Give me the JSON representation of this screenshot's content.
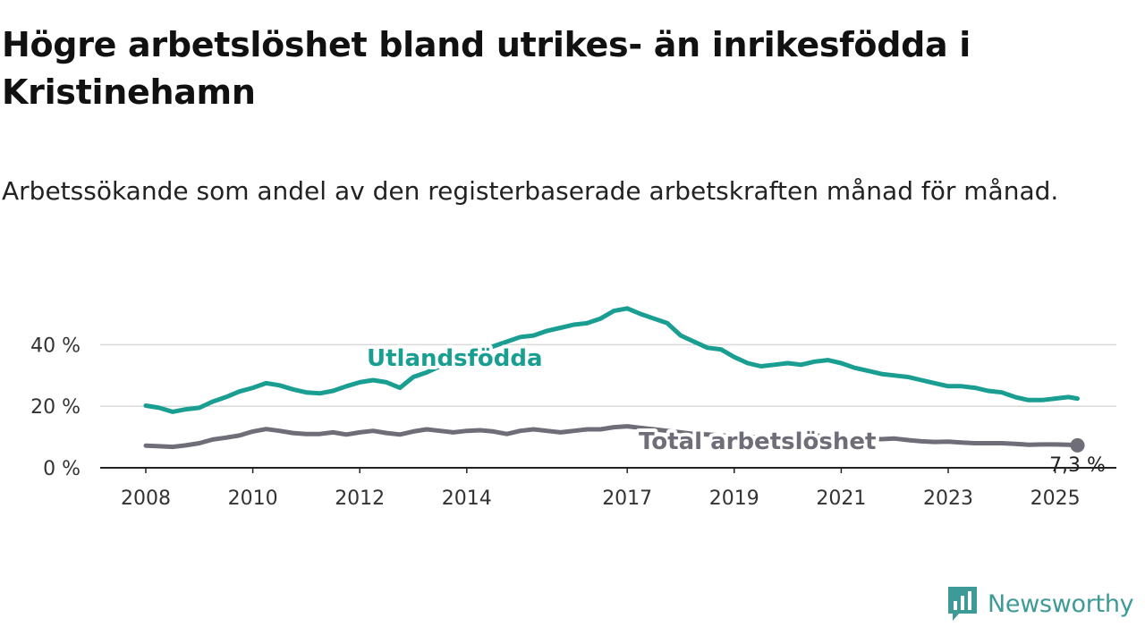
{
  "title": "Högre arbetslöshet bland utrikes- än inrikesfödda i Kristinehamn",
  "subtitle": "Arbetssökande som andel av den registerbaserade arbetskraften månad för månad.",
  "brand": {
    "name": "Newsworthy",
    "color": "#3d9a97",
    "icon": "bar-chart-badge-icon"
  },
  "chart_data": {
    "type": "line",
    "title": "Högre arbetslöshet bland utrikes- än inrikesfödda i Kristinehamn",
    "subtitle": "Arbetssökande som andel av den registerbaserade arbetskraften månad för månad.",
    "xlabel": "",
    "ylabel": "",
    "x_ticks": [
      "2008",
      "2010",
      "2012",
      "2014",
      "2017",
      "2019",
      "2021",
      "2023",
      "2025"
    ],
    "y_ticks": [
      {
        "value": 0,
        "label": "0 %"
      },
      {
        "value": 20,
        "label": "20 %"
      },
      {
        "value": 40,
        "label": "40 %"
      }
    ],
    "xlim": [
      "2008-01",
      "2025-06"
    ],
    "ylim": [
      0,
      55
    ],
    "grid": "horizontal",
    "legend": "inline labels",
    "series": [
      {
        "name": "Utlandsfödda",
        "color": "#1a9e92",
        "points": [
          [
            "2008-01",
            20.2
          ],
          [
            "2008-04",
            19.5
          ],
          [
            "2008-07",
            18.2
          ],
          [
            "2008-10",
            19.0
          ],
          [
            "2009-01",
            19.5
          ],
          [
            "2009-04",
            21.5
          ],
          [
            "2009-07",
            23.0
          ],
          [
            "2009-10",
            24.8
          ],
          [
            "2010-01",
            26.0
          ],
          [
            "2010-04",
            27.5
          ],
          [
            "2010-07",
            26.8
          ],
          [
            "2010-10",
            25.5
          ],
          [
            "2011-01",
            24.5
          ],
          [
            "2011-04",
            24.2
          ],
          [
            "2011-07",
            25.0
          ],
          [
            "2011-10",
            26.5
          ],
          [
            "2012-01",
            27.8
          ],
          [
            "2012-04",
            28.5
          ],
          [
            "2012-07",
            27.8
          ],
          [
            "2012-10",
            26.0
          ],
          [
            "2013-01",
            29.5
          ],
          [
            "2013-04",
            31.0
          ],
          [
            "2013-07",
            33.0
          ],
          [
            "2013-10",
            34.5
          ],
          [
            "2014-01",
            36.5
          ],
          [
            "2014-04",
            38.0
          ],
          [
            "2014-07",
            39.5
          ],
          [
            "2014-10",
            41.0
          ],
          [
            "2015-01",
            42.5
          ],
          [
            "2015-04",
            43.0
          ],
          [
            "2015-07",
            44.5
          ],
          [
            "2015-10",
            45.5
          ],
          [
            "2016-01",
            46.5
          ],
          [
            "2016-04",
            47.0
          ],
          [
            "2016-07",
            48.5
          ],
          [
            "2016-10",
            51.0
          ],
          [
            "2017-01",
            51.8
          ],
          [
            "2017-04",
            50.0
          ],
          [
            "2017-07",
            48.5
          ],
          [
            "2017-10",
            47.0
          ],
          [
            "2018-01",
            43.0
          ],
          [
            "2018-04",
            41.0
          ],
          [
            "2018-07",
            39.0
          ],
          [
            "2018-10",
            38.5
          ],
          [
            "2019-01",
            36.0
          ],
          [
            "2019-04",
            34.0
          ],
          [
            "2019-07",
            33.0
          ],
          [
            "2019-10",
            33.5
          ],
          [
            "2020-01",
            34.0
          ],
          [
            "2020-04",
            33.5
          ],
          [
            "2020-07",
            34.5
          ],
          [
            "2020-10",
            35.0
          ],
          [
            "2021-01",
            34.0
          ],
          [
            "2021-04",
            32.5
          ],
          [
            "2021-07",
            31.5
          ],
          [
            "2021-10",
            30.5
          ],
          [
            "2022-01",
            30.0
          ],
          [
            "2022-04",
            29.5
          ],
          [
            "2022-07",
            28.5
          ],
          [
            "2022-10",
            27.5
          ],
          [
            "2023-01",
            26.5
          ],
          [
            "2023-04",
            26.5
          ],
          [
            "2023-07",
            26.0
          ],
          [
            "2023-10",
            25.0
          ],
          [
            "2024-01",
            24.5
          ],
          [
            "2024-04",
            23.0
          ],
          [
            "2024-07",
            22.0
          ],
          [
            "2024-10",
            22.0
          ],
          [
            "2025-01",
            22.5
          ],
          [
            "2025-04",
            23.0
          ],
          [
            "2025-06",
            22.5
          ]
        ]
      },
      {
        "name": "Total arbetslöshet",
        "color": "#6e6d78",
        "end_label": "7,3 %",
        "points": [
          [
            "2008-01",
            7.2
          ],
          [
            "2008-04",
            7.0
          ],
          [
            "2008-07",
            6.8
          ],
          [
            "2008-10",
            7.3
          ],
          [
            "2009-01",
            8.0
          ],
          [
            "2009-04",
            9.2
          ],
          [
            "2009-07",
            9.8
          ],
          [
            "2009-10",
            10.5
          ],
          [
            "2010-01",
            11.8
          ],
          [
            "2010-04",
            12.6
          ],
          [
            "2010-07",
            12.0
          ],
          [
            "2010-10",
            11.3
          ],
          [
            "2011-01",
            11.0
          ],
          [
            "2011-04",
            11.0
          ],
          [
            "2011-07",
            11.5
          ],
          [
            "2011-10",
            10.8
          ],
          [
            "2012-01",
            11.5
          ],
          [
            "2012-04",
            12.0
          ],
          [
            "2012-07",
            11.3
          ],
          [
            "2012-10",
            10.8
          ],
          [
            "2013-01",
            11.8
          ],
          [
            "2013-04",
            12.5
          ],
          [
            "2013-07",
            12.0
          ],
          [
            "2013-10",
            11.5
          ],
          [
            "2014-01",
            12.0
          ],
          [
            "2014-04",
            12.2
          ],
          [
            "2014-07",
            11.8
          ],
          [
            "2014-10",
            11.0
          ],
          [
            "2015-01",
            12.0
          ],
          [
            "2015-04",
            12.5
          ],
          [
            "2015-07",
            12.0
          ],
          [
            "2015-10",
            11.5
          ],
          [
            "2016-01",
            12.0
          ],
          [
            "2016-04",
            12.5
          ],
          [
            "2016-07",
            12.5
          ],
          [
            "2016-10",
            13.2
          ],
          [
            "2017-01",
            13.5
          ],
          [
            "2017-04",
            13.0
          ],
          [
            "2017-07",
            12.5
          ],
          [
            "2017-10",
            12.0
          ],
          [
            "2018-01",
            11.5
          ],
          [
            "2018-04",
            11.0
          ],
          [
            "2018-07",
            10.8
          ],
          [
            "2018-10",
            10.5
          ],
          [
            "2019-01",
            10.3
          ],
          [
            "2019-04",
            10.0
          ],
          [
            "2019-07",
            10.0
          ],
          [
            "2019-10",
            10.0
          ],
          [
            "2020-01",
            10.0
          ],
          [
            "2020-04",
            10.5
          ],
          [
            "2020-07",
            10.5
          ],
          [
            "2020-10",
            10.2
          ],
          [
            "2021-01",
            10.0
          ],
          [
            "2021-04",
            9.7
          ],
          [
            "2021-07",
            9.5
          ],
          [
            "2021-10",
            9.3
          ],
          [
            "2022-01",
            9.5
          ],
          [
            "2022-04",
            9.0
          ],
          [
            "2022-07",
            8.6
          ],
          [
            "2022-10",
            8.4
          ],
          [
            "2023-01",
            8.5
          ],
          [
            "2023-04",
            8.2
          ],
          [
            "2023-07",
            8.0
          ],
          [
            "2023-10",
            8.0
          ],
          [
            "2024-01",
            8.0
          ],
          [
            "2024-04",
            7.8
          ],
          [
            "2024-07",
            7.5
          ],
          [
            "2024-10",
            7.6
          ],
          [
            "2025-01",
            7.6
          ],
          [
            "2025-04",
            7.5
          ],
          [
            "2025-06",
            7.3
          ]
        ]
      }
    ]
  }
}
